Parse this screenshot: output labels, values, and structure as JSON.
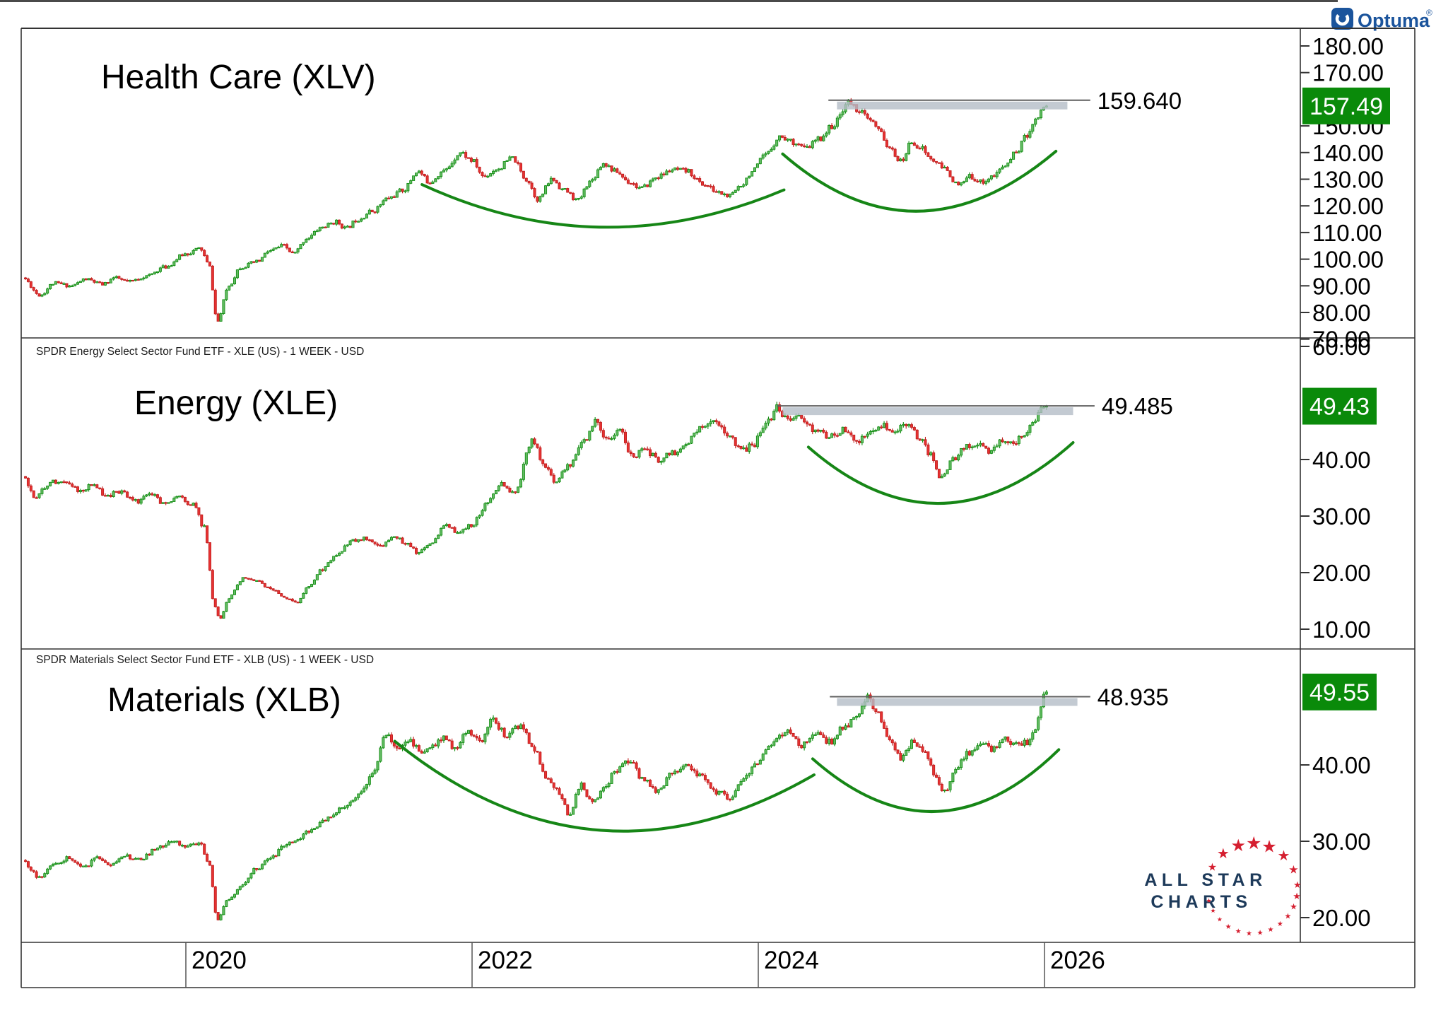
{
  "branding": {
    "optuma": {
      "label": "Optuma",
      "registered_mark": "®",
      "brand_color": "#1b549c"
    },
    "all_star_charts": {
      "line1": "ALL STAR",
      "line2": "CHARTS",
      "text_color": "#1d3a5a",
      "star_color": "#d51f30"
    }
  },
  "colors": {
    "candle_up_fill": "#63bb63",
    "candle_up_stroke": "#0c8a0c",
    "candle_down_fill": "#e63232",
    "candle_down_stroke": "#bf1d1d",
    "arc_green": "#168616",
    "resistance_line": "#5f5f5f",
    "resistance_band": "#b4bdc7",
    "badge_green": "#0a8a0a",
    "badge_text": "#ffffff",
    "axis_text": "#000000",
    "border": "#333333"
  },
  "time_axis": {
    "year_labels": [
      "2020",
      "2022",
      "2024",
      "2026"
    ],
    "year_values": [
      2020,
      2022,
      2024,
      2026
    ]
  },
  "chart_data": {
    "type": "candlestick",
    "timeframe": "1 WEEK",
    "currency": "USD",
    "x_domain": [
      2018.86,
      2026.35
    ],
    "panels": [
      {
        "symbol": "XLV",
        "title": "Health Care (XLV)",
        "descriptor": "",
        "last_price_label": "157.49",
        "last_price": 157.49,
        "resistance": {
          "label": "159.640",
          "value": 159.64,
          "line_t": [
            2024.49,
            2026.32
          ],
          "band_t": [
            2024.55,
            2026.16
          ]
        },
        "y_ticks": [
          "180.00",
          "170.00",
          "150.00",
          "140.00",
          "130.00",
          "120.00",
          "110.00",
          "100.00",
          "90.00",
          "80.00",
          "70.00"
        ],
        "arcs": [
          [
            2021.65,
            128,
            2022.9,
            97,
            2024.18,
            126
          ],
          [
            2024.17,
            139.5,
            2025.1,
            96,
            2026.08,
            140.5
          ]
        ],
        "volatility": 2.2,
        "seed": 11,
        "anchors": [
          [
            2018.86,
            93
          ],
          [
            2018.98,
            86.5
          ],
          [
            2019.08,
            91
          ],
          [
            2019.2,
            90
          ],
          [
            2019.3,
            92.5
          ],
          [
            2019.42,
            90.5
          ],
          [
            2019.5,
            93
          ],
          [
            2019.6,
            91.5
          ],
          [
            2019.72,
            93.5
          ],
          [
            2019.85,
            97
          ],
          [
            2020.0,
            102
          ],
          [
            2020.1,
            104
          ],
          [
            2020.16,
            98
          ],
          [
            2020.22,
            76.5
          ],
          [
            2020.3,
            90
          ],
          [
            2020.38,
            97
          ],
          [
            2020.5,
            99
          ],
          [
            2020.58,
            103
          ],
          [
            2020.68,
            105
          ],
          [
            2020.75,
            102
          ],
          [
            2020.85,
            108
          ],
          [
            2020.95,
            112
          ],
          [
            2021.05,
            114
          ],
          [
            2021.12,
            111.5
          ],
          [
            2021.2,
            115
          ],
          [
            2021.3,
            118
          ],
          [
            2021.42,
            123
          ],
          [
            2021.52,
            126
          ],
          [
            2021.62,
            133
          ],
          [
            2021.7,
            129
          ],
          [
            2021.8,
            133
          ],
          [
            2021.92,
            140
          ],
          [
            2022.0,
            137
          ],
          [
            2022.08,
            131
          ],
          [
            2022.18,
            134
          ],
          [
            2022.28,
            138
          ],
          [
            2022.38,
            130
          ],
          [
            2022.46,
            122.5
          ],
          [
            2022.56,
            130
          ],
          [
            2022.64,
            126
          ],
          [
            2022.74,
            122
          ],
          [
            2022.82,
            129
          ],
          [
            2022.92,
            136
          ],
          [
            2023.0,
            133
          ],
          [
            2023.1,
            129
          ],
          [
            2023.18,
            126.5
          ],
          [
            2023.3,
            131
          ],
          [
            2023.4,
            133.5
          ],
          [
            2023.5,
            133
          ],
          [
            2023.62,
            128
          ],
          [
            2023.72,
            125
          ],
          [
            2023.8,
            123.5
          ],
          [
            2023.88,
            128
          ],
          [
            2023.96,
            133
          ],
          [
            2024.05,
            139
          ],
          [
            2024.15,
            146
          ],
          [
            2024.25,
            144
          ],
          [
            2024.33,
            141.5
          ],
          [
            2024.42,
            145
          ],
          [
            2024.52,
            150
          ],
          [
            2024.63,
            159
          ],
          [
            2024.7,
            156
          ],
          [
            2024.78,
            152
          ],
          [
            2024.85,
            148
          ],
          [
            2024.92,
            141
          ],
          [
            2025.0,
            136.5
          ],
          [
            2025.07,
            144
          ],
          [
            2025.13,
            142
          ],
          [
            2025.22,
            137
          ],
          [
            2025.3,
            134
          ],
          [
            2025.4,
            127.5
          ],
          [
            2025.48,
            131
          ],
          [
            2025.56,
            129
          ],
          [
            2025.64,
            131
          ],
          [
            2025.72,
            135
          ],
          [
            2025.8,
            140
          ],
          [
            2025.87,
            146
          ],
          [
            2025.93,
            152
          ],
          [
            2026.0,
            157.49
          ]
        ]
      },
      {
        "symbol": "XLE",
        "title": "Energy (XLE)",
        "descriptor": "SPDR Energy Select Sector Fund ETF - XLE (US) - 1 WEEK - USD",
        "last_price_label": "49.43",
        "last_price": 49.43,
        "resistance": {
          "label": "49.485",
          "value": 49.485,
          "line_t": [
            2024.13,
            2026.35
          ],
          "band_t": [
            2024.17,
            2026.2
          ]
        },
        "y_ticks": [
          "60.00",
          "40.00",
          "30.00",
          "20.00",
          "10.00"
        ],
        "arcs": [
          [
            2024.35,
            42.2,
            2025.27,
            21.9,
            2026.2,
            43.0
          ]
        ],
        "volatility": 4.0,
        "seed": 22,
        "anchors": [
          [
            2018.86,
            37
          ],
          [
            2018.95,
            33.5
          ],
          [
            2019.05,
            36
          ],
          [
            2019.15,
            36.5
          ],
          [
            2019.25,
            34.5
          ],
          [
            2019.35,
            35.5
          ],
          [
            2019.45,
            33.5
          ],
          [
            2019.55,
            34.5
          ],
          [
            2019.65,
            32.5
          ],
          [
            2019.75,
            34
          ],
          [
            2019.85,
            32
          ],
          [
            2019.95,
            33.5
          ],
          [
            2020.05,
            32
          ],
          [
            2020.13,
            28
          ],
          [
            2020.2,
            14
          ],
          [
            2020.24,
            11.8
          ],
          [
            2020.3,
            15.5
          ],
          [
            2020.4,
            19
          ],
          [
            2020.5,
            18.5
          ],
          [
            2020.6,
            17
          ],
          [
            2020.7,
            15.5
          ],
          [
            2020.78,
            14.8
          ],
          [
            2020.86,
            17.5
          ],
          [
            2020.95,
            20.5
          ],
          [
            2021.05,
            23
          ],
          [
            2021.15,
            25.5
          ],
          [
            2021.25,
            26
          ],
          [
            2021.35,
            24.5
          ],
          [
            2021.45,
            26.5
          ],
          [
            2021.55,
            25
          ],
          [
            2021.62,
            23.5
          ],
          [
            2021.72,
            25.5
          ],
          [
            2021.82,
            28.5
          ],
          [
            2021.9,
            27
          ],
          [
            2022.0,
            28.5
          ],
          [
            2022.1,
            32
          ],
          [
            2022.2,
            35.5
          ],
          [
            2022.3,
            34
          ],
          [
            2022.42,
            43.5
          ],
          [
            2022.5,
            39
          ],
          [
            2022.58,
            36
          ],
          [
            2022.68,
            39
          ],
          [
            2022.78,
            43
          ],
          [
            2022.86,
            46.5
          ],
          [
            2022.95,
            43.5
          ],
          [
            2023.03,
            45
          ],
          [
            2023.12,
            40.5
          ],
          [
            2023.2,
            42
          ],
          [
            2023.3,
            40
          ],
          [
            2023.4,
            41
          ],
          [
            2023.5,
            43
          ],
          [
            2023.6,
            45.5
          ],
          [
            2023.68,
            47
          ],
          [
            2023.78,
            44.5
          ],
          [
            2023.88,
            41.5
          ],
          [
            2023.96,
            42.5
          ],
          [
            2024.05,
            46
          ],
          [
            2024.13,
            49.2
          ],
          [
            2024.2,
            47
          ],
          [
            2024.3,
            47.5
          ],
          [
            2024.4,
            45
          ],
          [
            2024.5,
            44
          ],
          [
            2024.6,
            45.5
          ],
          [
            2024.68,
            43
          ],
          [
            2024.78,
            44.5
          ],
          [
            2024.86,
            46
          ],
          [
            2024.95,
            44.5
          ],
          [
            2025.03,
            46.5
          ],
          [
            2025.12,
            44
          ],
          [
            2025.2,
            41
          ],
          [
            2025.28,
            36.8
          ],
          [
            2025.36,
            40
          ],
          [
            2025.45,
            42.5
          ],
          [
            2025.55,
            43
          ],
          [
            2025.62,
            41.5
          ],
          [
            2025.7,
            43.5
          ],
          [
            2025.78,
            43
          ],
          [
            2025.85,
            44.5
          ],
          [
            2025.92,
            46.5
          ],
          [
            2026.0,
            49.43
          ]
        ]
      },
      {
        "symbol": "XLB",
        "title": "Materials (XLB)",
        "descriptor": "SPDR Materials Select Sector Fund ETF - XLB (US) - 1 WEEK - USD",
        "last_price_label": "49.55",
        "last_price": 49.55,
        "resistance": {
          "label": "48.935",
          "value": 48.935,
          "line_t": [
            2024.5,
            2026.32
          ],
          "band_t": [
            2024.55,
            2026.23
          ]
        },
        "y_ticks": [
          "40.00",
          "30.00",
          "20.00"
        ],
        "arcs": [
          [
            2021.46,
            43.1,
            2022.85,
            22.0,
            2024.39,
            38.7
          ],
          [
            2024.38,
            40.8,
            2025.25,
            26.4,
            2026.1,
            42.0
          ]
        ],
        "volatility": 3.0,
        "seed": 33,
        "anchors": [
          [
            2018.86,
            27.5
          ],
          [
            2018.97,
            25.3
          ],
          [
            2019.07,
            26.8
          ],
          [
            2019.18,
            27.8
          ],
          [
            2019.28,
            26.5
          ],
          [
            2019.38,
            27.8
          ],
          [
            2019.48,
            26.8
          ],
          [
            2019.58,
            28
          ],
          [
            2019.68,
            27.5
          ],
          [
            2019.78,
            28.8
          ],
          [
            2019.9,
            30
          ],
          [
            2020.0,
            29.5
          ],
          [
            2020.1,
            29.8
          ],
          [
            2020.16,
            27
          ],
          [
            2020.22,
            19.8
          ],
          [
            2020.3,
            22.5
          ],
          [
            2020.4,
            24.5
          ],
          [
            2020.5,
            26.5
          ],
          [
            2020.6,
            28
          ],
          [
            2020.7,
            29.5
          ],
          [
            2020.8,
            30.5
          ],
          [
            2020.9,
            32
          ],
          [
            2021.0,
            33
          ],
          [
            2021.1,
            34.5
          ],
          [
            2021.2,
            36
          ],
          [
            2021.3,
            38.5
          ],
          [
            2021.4,
            44
          ],
          [
            2021.48,
            42
          ],
          [
            2021.56,
            43.5
          ],
          [
            2021.64,
            41.5
          ],
          [
            2021.72,
            42.5
          ],
          [
            2021.8,
            43.5
          ],
          [
            2021.88,
            42
          ],
          [
            2021.96,
            44.5
          ],
          [
            2022.05,
            43
          ],
          [
            2022.14,
            45.8
          ],
          [
            2022.24,
            44
          ],
          [
            2022.34,
            45
          ],
          [
            2022.44,
            42
          ],
          [
            2022.52,
            38
          ],
          [
            2022.6,
            36.5
          ],
          [
            2022.68,
            33.5
          ],
          [
            2022.76,
            37.5
          ],
          [
            2022.84,
            35
          ],
          [
            2022.92,
            37
          ],
          [
            2023.0,
            39
          ],
          [
            2023.1,
            40.5
          ],
          [
            2023.2,
            38
          ],
          [
            2023.3,
            36.5
          ],
          [
            2023.4,
            39
          ],
          [
            2023.5,
            40
          ],
          [
            2023.6,
            38.5
          ],
          [
            2023.7,
            36.5
          ],
          [
            2023.8,
            35.8
          ],
          [
            2023.9,
            38.5
          ],
          [
            2024.0,
            40.5
          ],
          [
            2024.1,
            43
          ],
          [
            2024.2,
            44.5
          ],
          [
            2024.3,
            42.5
          ],
          [
            2024.4,
            44
          ],
          [
            2024.5,
            43
          ],
          [
            2024.6,
            45
          ],
          [
            2024.7,
            46.5
          ],
          [
            2024.76,
            48.9
          ],
          [
            2024.84,
            46.5
          ],
          [
            2024.92,
            43.5
          ],
          [
            2025.0,
            40.8
          ],
          [
            2025.08,
            43
          ],
          [
            2025.16,
            41.5
          ],
          [
            2025.24,
            38.5
          ],
          [
            2025.3,
            36.5
          ],
          [
            2025.38,
            39.5
          ],
          [
            2025.46,
            41.5
          ],
          [
            2025.56,
            43
          ],
          [
            2025.64,
            42
          ],
          [
            2025.72,
            43.5
          ],
          [
            2025.8,
            42.5
          ],
          [
            2025.88,
            43
          ],
          [
            2025.94,
            45
          ],
          [
            2026.0,
            49.55
          ]
        ]
      }
    ]
  }
}
